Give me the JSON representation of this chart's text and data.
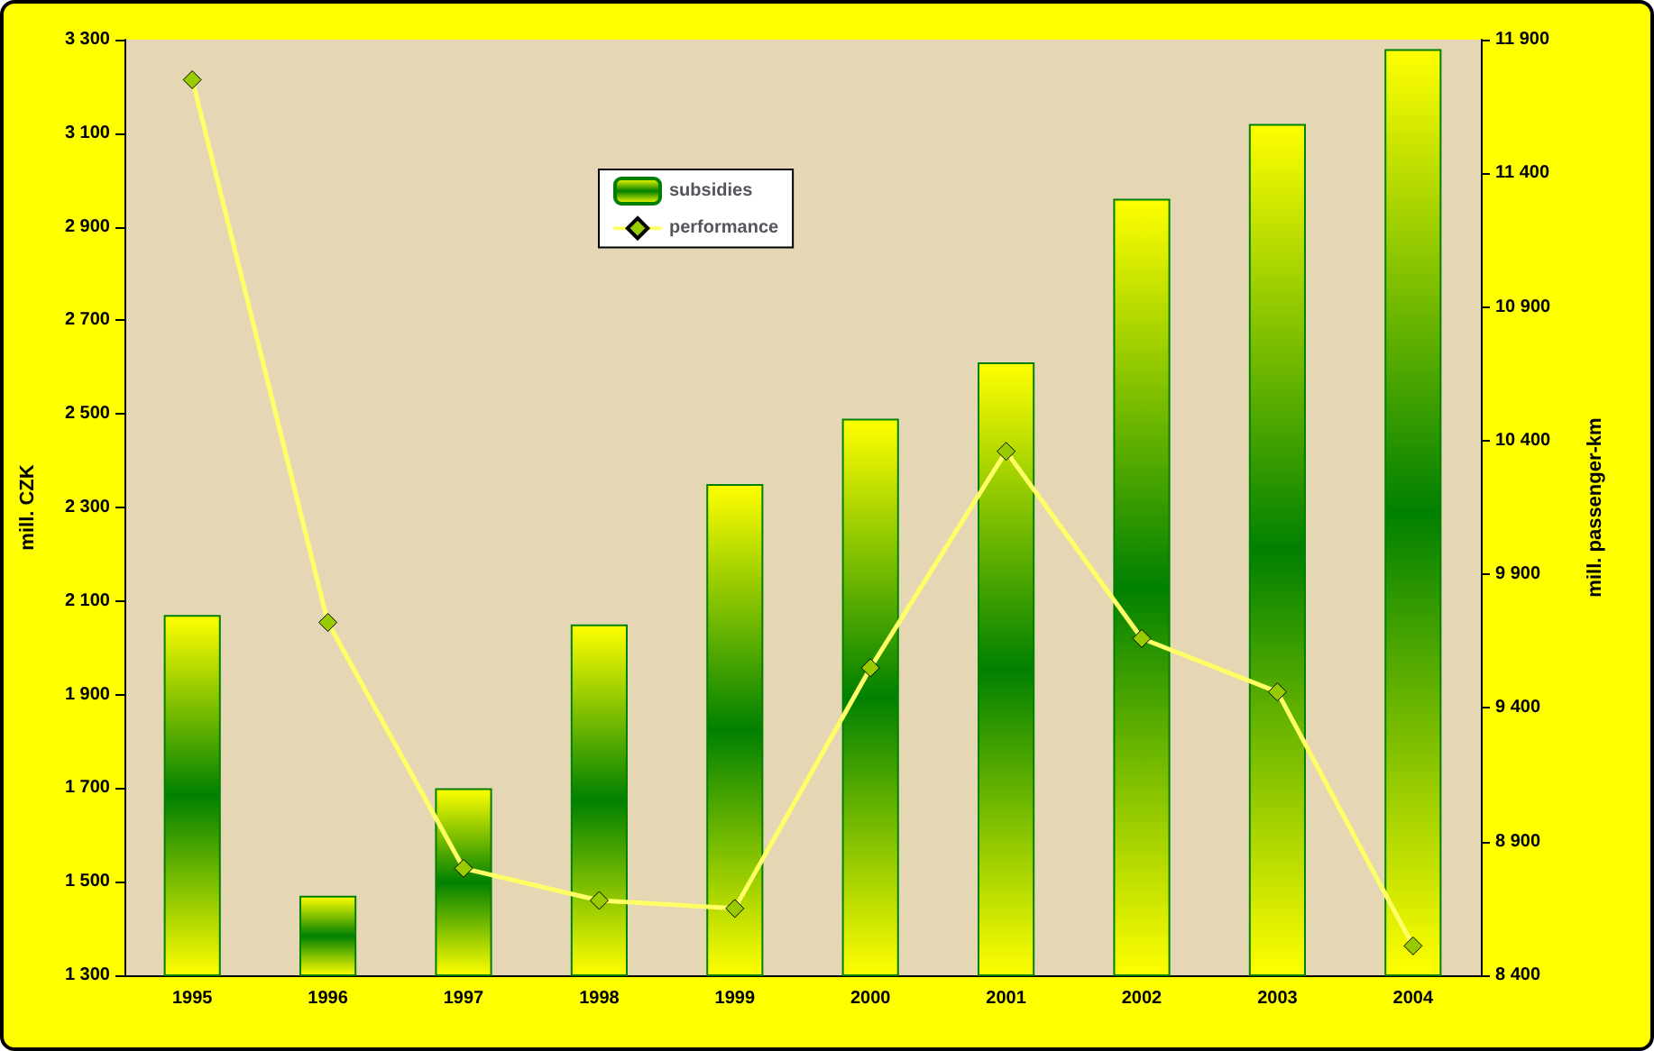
{
  "chart_data": {
    "type": "bar",
    "categories": [
      "1995",
      "1996",
      "1997",
      "1998",
      "1999",
      "2000",
      "2001",
      "2002",
      "2003",
      "2004"
    ],
    "series": [
      {
        "name": "subsidies",
        "color": "#008000",
        "values": [
          2070,
          1470,
          1700,
          2050,
          2350,
          2490,
          2610,
          2960,
          3120,
          3280
        ]
      },
      {
        "name": "performance",
        "type": "line",
        "axis": "y2",
        "color": "#ffff66",
        "values": [
          11750,
          9720,
          8800,
          8680,
          8650,
          9550,
          10360,
          9660,
          9460,
          8510
        ]
      }
    ],
    "ylabel": "mill. CZK",
    "y2label": "mill. passenger-km",
    "ylim": [
      1300,
      3300
    ],
    "yticks": [
      {
        "value": 1300,
        "label": "1 300"
      },
      {
        "value": 1500,
        "label": "1 500"
      },
      {
        "value": 1700,
        "label": "1 700"
      },
      {
        "value": 1900,
        "label": "1 900"
      },
      {
        "value": 2100,
        "label": "2 100"
      },
      {
        "value": 2300,
        "label": "2 300"
      },
      {
        "value": 2500,
        "label": "2 500"
      },
      {
        "value": 2700,
        "label": "2 700"
      },
      {
        "value": 2900,
        "label": "2 900"
      },
      {
        "value": 3100,
        "label": "3 100"
      },
      {
        "value": 3300,
        "label": "3 300"
      }
    ],
    "y2lim": [
      8400,
      11900
    ],
    "y2ticks": [
      {
        "value": 8400,
        "label": "8 400"
      },
      {
        "value": 8900,
        "label": "8 900"
      },
      {
        "value": 9400,
        "label": "9 400"
      },
      {
        "value": 9900,
        "label": "9 900"
      },
      {
        "value": 10400,
        "label": "10 400"
      },
      {
        "value": 10900,
        "label": "10 900"
      },
      {
        "value": 11400,
        "label": "11 400"
      },
      {
        "value": 11900,
        "label": "11 900"
      }
    ],
    "marker": "diamond",
    "grid": false,
    "legend": "top"
  }
}
